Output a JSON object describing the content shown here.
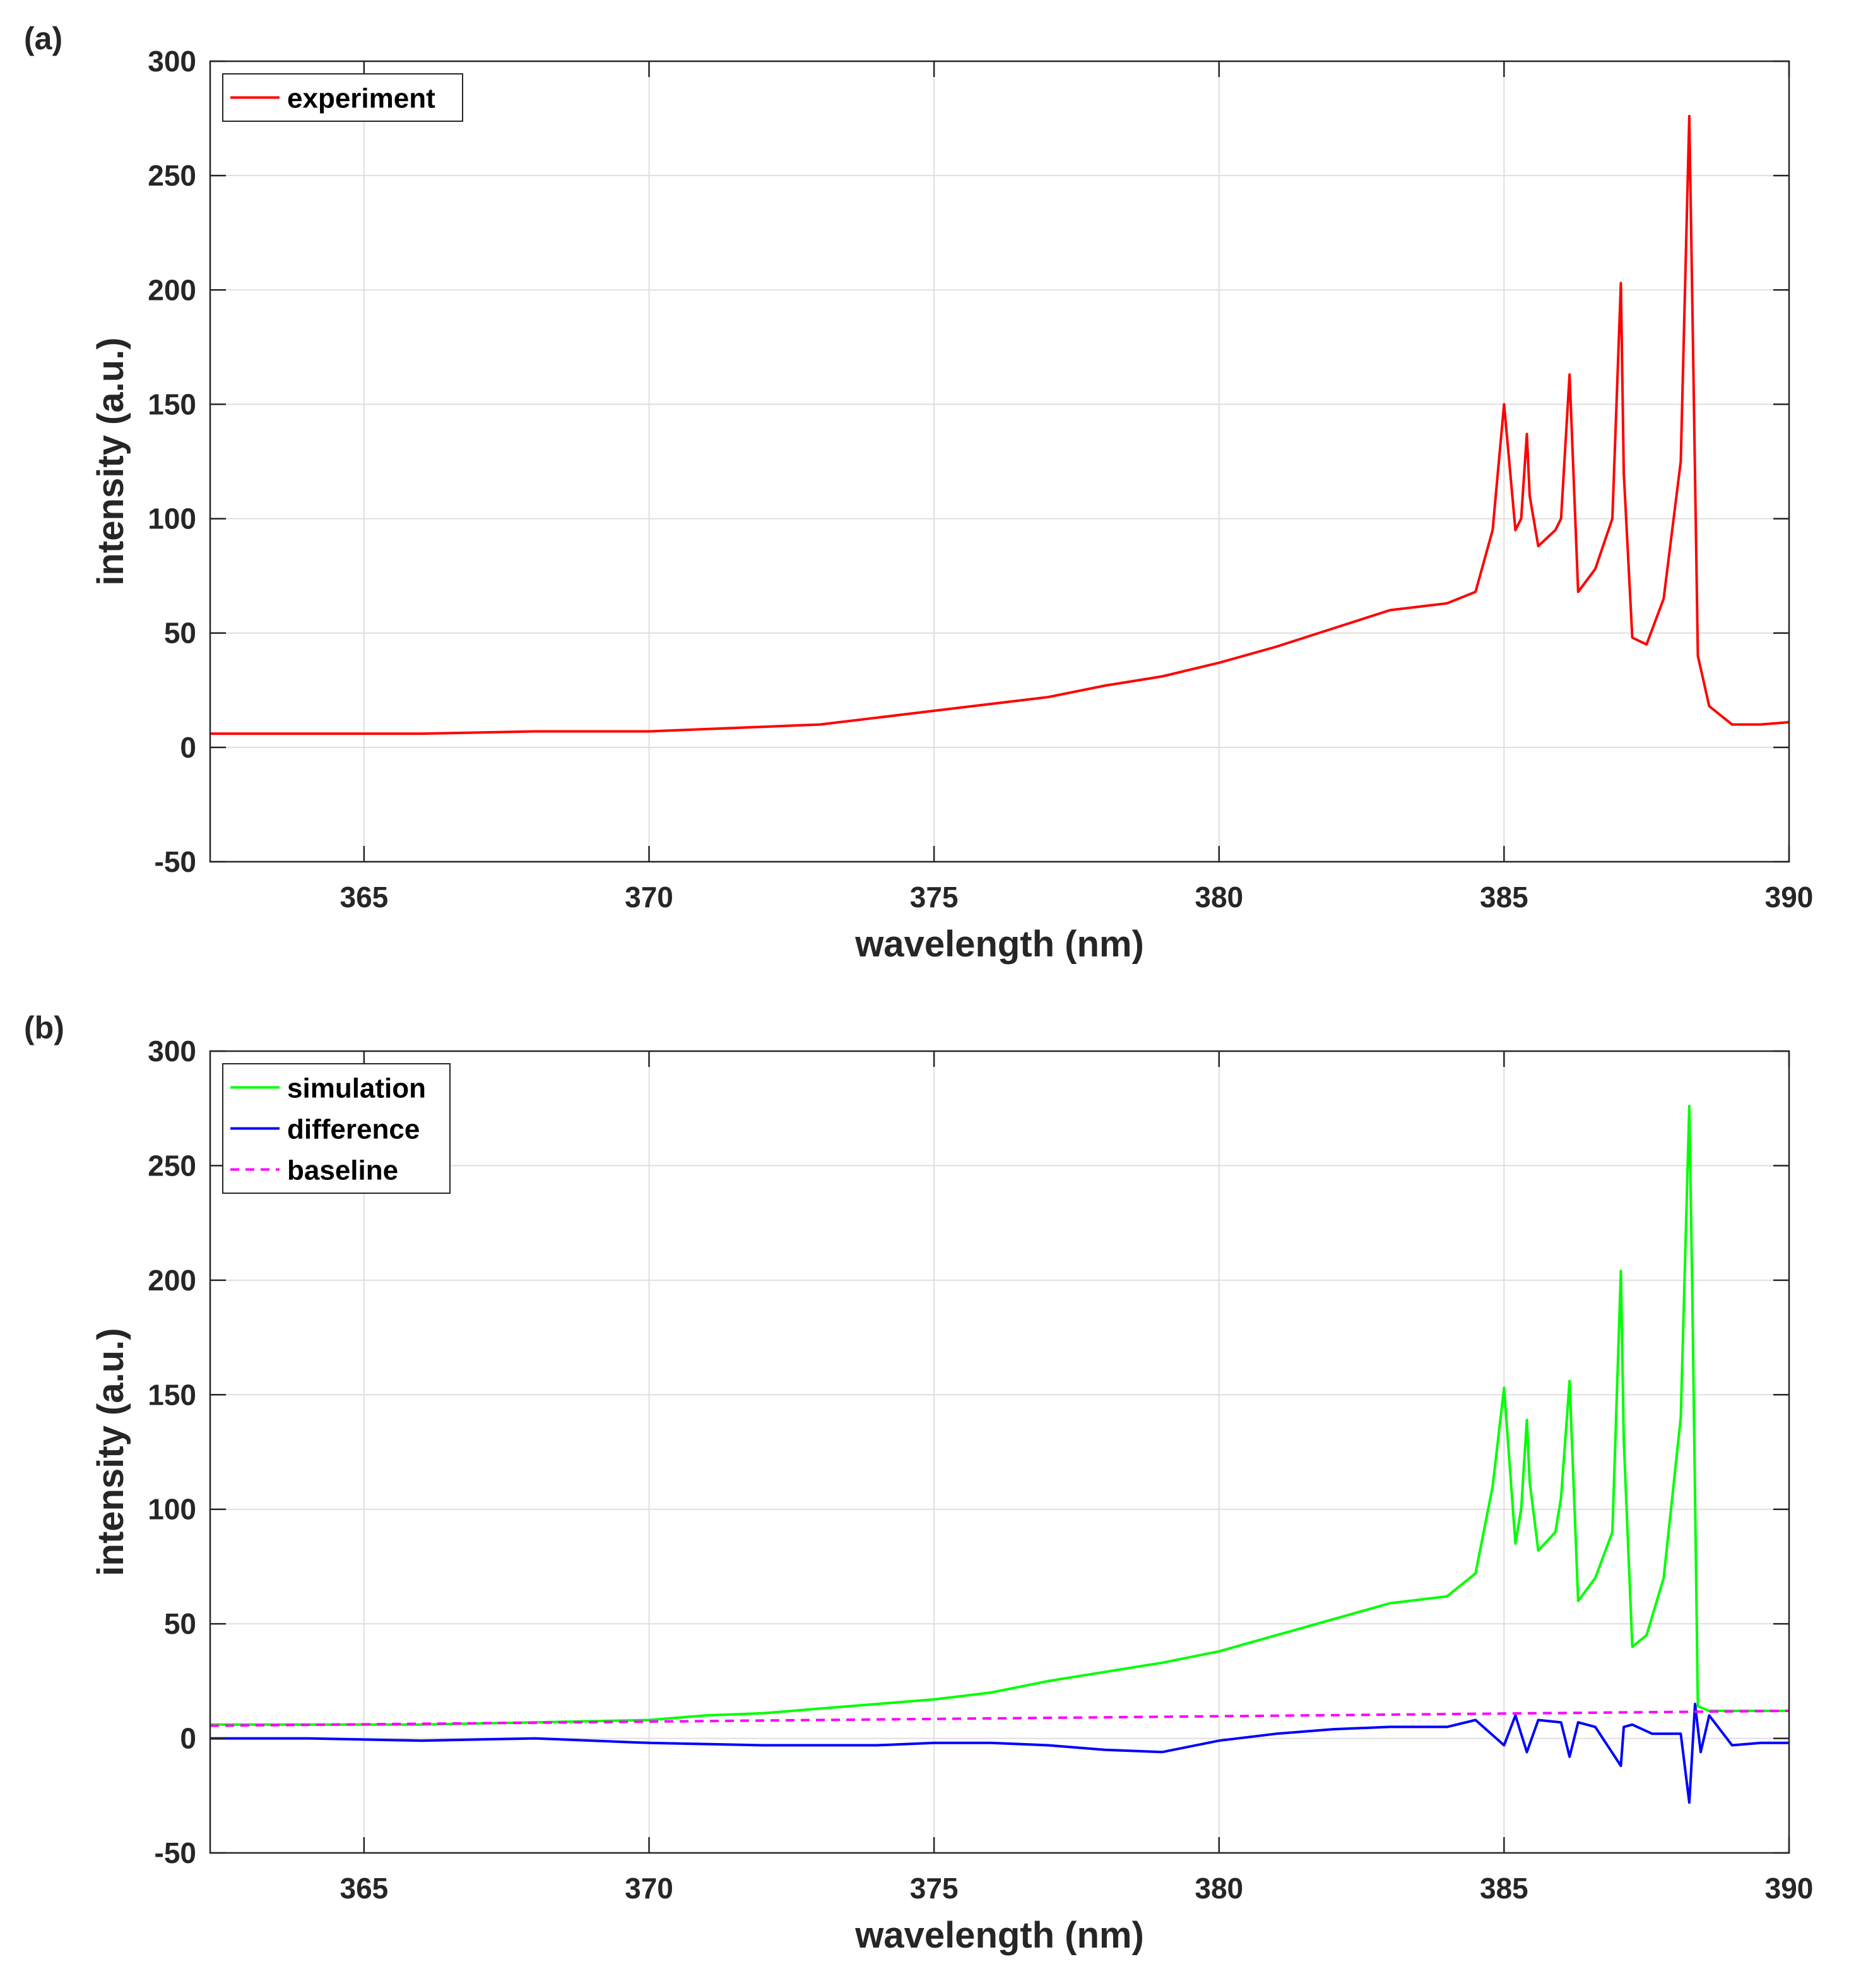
{
  "chart_data": [
    {
      "panel_label": "(a)",
      "type": "line",
      "xlabel": "wavelength (nm)",
      "ylabel": "intensity (a.u.)",
      "xlim": [
        362.3,
        390
      ],
      "ylim": [
        -50,
        300
      ],
      "xticks": [
        365,
        370,
        375,
        380,
        385,
        390
      ],
      "yticks": [
        -50,
        0,
        50,
        100,
        150,
        200,
        250,
        300
      ],
      "grid": true,
      "legend_position": "top-left",
      "series": [
        {
          "name": "experiment",
          "color": "#ff0000",
          "dash": "solid",
          "x": [
            362.3,
            364,
            366,
            368,
            370,
            371,
            372,
            373,
            374,
            375,
            376,
            377,
            378,
            379,
            380,
            381,
            382,
            383,
            384,
            384.5,
            384.8,
            385.0,
            385.2,
            385.3,
            385.4,
            385.45,
            385.6,
            385.9,
            386.0,
            386.15,
            386.3,
            386.6,
            386.9,
            387.05,
            387.1,
            387.25,
            387.5,
            387.8,
            388.1,
            388.25,
            388.3,
            388.4,
            388.6,
            389.0,
            389.5,
            390.0
          ],
          "y": [
            6,
            6,
            6,
            7,
            7,
            8,
            9,
            10,
            13,
            16,
            19,
            22,
            27,
            31,
            37,
            44,
            52,
            60,
            63,
            68,
            95,
            150,
            95,
            100,
            137,
            110,
            88,
            95,
            100,
            163,
            68,
            78,
            100,
            203,
            120,
            48,
            45,
            65,
            125,
            276,
            200,
            40,
            18,
            10,
            10,
            11
          ]
        }
      ]
    },
    {
      "panel_label": "(b)",
      "type": "line",
      "xlabel": "wavelength (nm)",
      "ylabel": "intensity (a.u.)",
      "xlim": [
        362.3,
        390
      ],
      "ylim": [
        -50,
        300
      ],
      "xticks": [
        365,
        370,
        375,
        380,
        385,
        390
      ],
      "yticks": [
        -50,
        0,
        50,
        100,
        150,
        200,
        250,
        300
      ],
      "grid": true,
      "legend_position": "top-left",
      "series": [
        {
          "name": "simulation",
          "color": "#00ff00",
          "dash": "solid",
          "x": [
            362.3,
            364,
            366,
            368,
            370,
            371,
            372,
            373,
            374,
            375,
            376,
            377,
            378,
            379,
            380,
            381,
            382,
            383,
            384,
            384.5,
            384.8,
            385.0,
            385.2,
            385.3,
            385.4,
            385.45,
            385.6,
            385.9,
            386.0,
            386.15,
            386.3,
            386.6,
            386.9,
            387.05,
            387.1,
            387.25,
            387.5,
            387.8,
            388.1,
            388.25,
            388.3,
            388.4,
            388.6,
            389.0,
            389.5,
            390.0
          ],
          "y": [
            6,
            6,
            6,
            7,
            8,
            10,
            11,
            13,
            15,
            17,
            20,
            25,
            29,
            33,
            38,
            45,
            52,
            59,
            62,
            72,
            110,
            153,
            85,
            100,
            139,
            112,
            82,
            90,
            105,
            156,
            60,
            70,
            90,
            204,
            130,
            40,
            45,
            70,
            140,
            276,
            200,
            14,
            12,
            12,
            12,
            12
          ]
        },
        {
          "name": "difference",
          "color": "#0000ff",
          "dash": "solid",
          "x": [
            362.3,
            364,
            366,
            368,
            370,
            372,
            374,
            375,
            376,
            377,
            378,
            379,
            380,
            381,
            382,
            383,
            384,
            384.5,
            385.0,
            385.2,
            385.4,
            385.6,
            386.0,
            386.15,
            386.3,
            386.6,
            387.05,
            387.1,
            387.25,
            387.6,
            388.1,
            388.25,
            388.35,
            388.45,
            388.6,
            389.0,
            389.5,
            390.0
          ],
          "y": [
            0,
            0,
            -1,
            0,
            -2,
            -3,
            -3,
            -2,
            -2,
            -3,
            -5,
            -6,
            -1,
            2,
            4,
            5,
            5,
            8,
            -3,
            10,
            -6,
            8,
            7,
            -8,
            7,
            5,
            -12,
            5,
            6,
            2,
            2,
            -28,
            15,
            -6,
            10,
            -3,
            -2,
            -2
          ]
        },
        {
          "name": "baseline",
          "color": "#ff00ff",
          "dash": "dashed",
          "x": [
            362.3,
            390
          ],
          "y": [
            5.5,
            12
          ]
        }
      ]
    }
  ]
}
